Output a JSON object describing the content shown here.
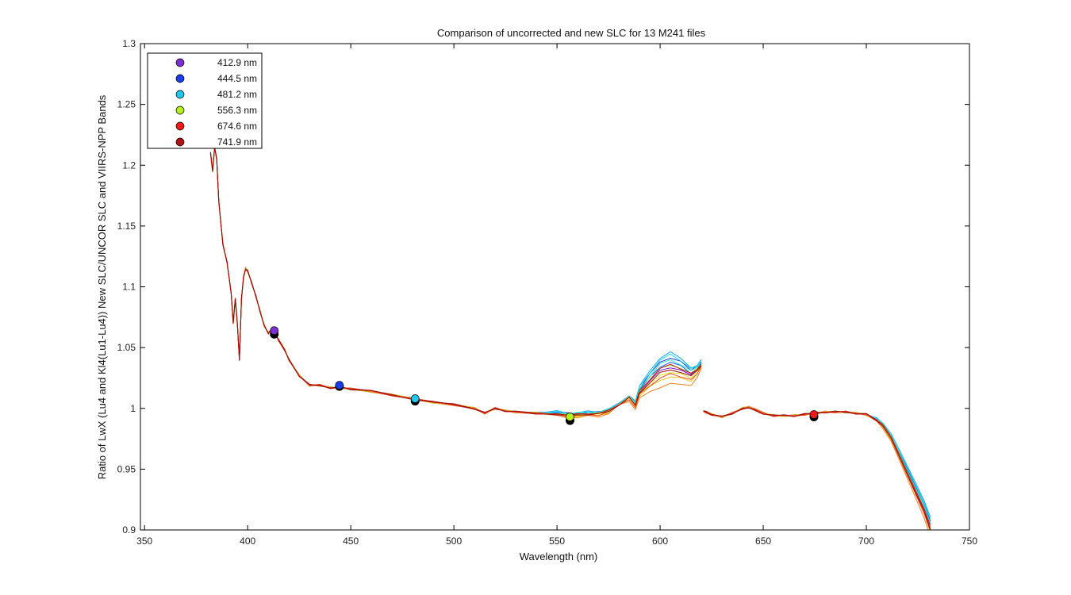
{
  "chart_data": {
    "type": "line",
    "title": "Comparison of uncorrected and new SLC for 13 M241 files",
    "xlabel": "Wavelength (nm)",
    "ylabel": "Ratio of LwX (Lu4 and Kl4(Lu1-Lu4))  New SLC/UNCOR SLC and VIIRS-NPP Bands",
    "xlim": [
      348,
      750
    ],
    "ylim": [
      0.9,
      1.3
    ],
    "x_ticks": [
      "350",
      "400",
      "450",
      "500",
      "550",
      "600",
      "650",
      "700",
      "750"
    ],
    "y_ticks": [
      "0.9",
      "0.95",
      "1",
      "1.05",
      "1.1",
      "1.15",
      "1.2",
      "1.25",
      "1.3"
    ],
    "grid": false,
    "legend_position": "top-left",
    "bands": [
      {
        "label": "412.9 nm",
        "wavelength": 412.9,
        "value": 1.064,
        "color": "#7b2fd0"
      },
      {
        "label": "444.5 nm",
        "wavelength": 444.5,
        "value": 1.019,
        "color": "#1a3cf0"
      },
      {
        "label": "481.2 nm",
        "wavelength": 481.2,
        "value": 1.008,
        "color": "#20c8f0"
      },
      {
        "label": "556.3 nm",
        "wavelength": 556.3,
        "value": 0.993,
        "color": "#b6ef1a"
      },
      {
        "label": "674.6 nm",
        "wavelength": 674.6,
        "value": 0.995,
        "color": "#f01818"
      },
      {
        "label": "741.9 nm",
        "wavelength": 741.9,
        "value": null,
        "color": "#b01010"
      }
    ],
    "band_lower_markers": [
      {
        "wavelength": 412.9,
        "value": 1.061
      },
      {
        "wavelength": 444.5,
        "value": 1.018
      },
      {
        "wavelength": 481.2,
        "value": 1.006
      },
      {
        "wavelength": 556.3,
        "value": 0.99
      },
      {
        "wavelength": 674.6,
        "value": 0.993
      }
    ],
    "base_curve": {
      "x": [
        382,
        383,
        384,
        385,
        386,
        388,
        390,
        392,
        393,
        394,
        395,
        396,
        397,
        398,
        399,
        400,
        402,
        404,
        406,
        408,
        410,
        412,
        413,
        415,
        418,
        420,
        425,
        430,
        435,
        440,
        445,
        450,
        460,
        470,
        480,
        490,
        500,
        510,
        515,
        520,
        525,
        530,
        540,
        550,
        555,
        560,
        565,
        570,
        575,
        580,
        585,
        588,
        590,
        595,
        600,
        605,
        610,
        615,
        618,
        620,
        621,
        622,
        625,
        630,
        635,
        640,
        643,
        646,
        650,
        655,
        660,
        665,
        670,
        675,
        680,
        685,
        690,
        695,
        700,
        705,
        708,
        712,
        716,
        720,
        724,
        728,
        731
      ],
      "y": [
        1.21,
        1.195,
        1.215,
        1.205,
        1.17,
        1.135,
        1.12,
        1.095,
        1.07,
        1.09,
        1.07,
        1.04,
        1.09,
        1.108,
        1.115,
        1.113,
        1.103,
        1.092,
        1.08,
        1.068,
        1.062,
        1.066,
        1.063,
        1.056,
        1.048,
        1.04,
        1.027,
        1.019,
        1.019,
        1.017,
        1.017,
        1.016,
        1.014,
        1.011,
        1.008,
        1.005,
        1.003,
        1.0,
        0.996,
        1.0,
        0.998,
        0.997,
        0.996,
        0.995,
        0.994,
        0.994,
        0.995,
        0.995,
        0.997,
        1.003,
        1.008,
        1.002,
        1.012,
        1.02,
        1.027,
        1.03,
        1.028,
        1.025,
        1.03,
        1.035,
        0.998,
        0.997,
        0.995,
        0.993,
        0.996,
        1.0,
        1.001,
        0.999,
        0.996,
        0.994,
        0.994,
        0.994,
        0.995,
        0.996,
        0.997,
        0.997,
        0.997,
        0.996,
        0.995,
        0.99,
        0.985,
        0.975,
        0.96,
        0.945,
        0.93,
        0.915,
        0.9
      ]
    },
    "curve_colors": [
      "#7a1fc8",
      "#1836e8",
      "#0a5cff",
      "#10a8f0",
      "#18d8f0",
      "#30e8c0",
      "#8cf050",
      "#d8e820",
      "#f0c020",
      "#f08020",
      "#f04818",
      "#d01010",
      "#a00808"
    ],
    "curve_offsets_600": [
      0.004,
      0.012,
      0.008,
      0.016,
      0.014,
      0.01,
      0.006,
      0.0,
      -0.004,
      -0.01,
      -0.002,
      0.006,
      0.002
    ]
  }
}
